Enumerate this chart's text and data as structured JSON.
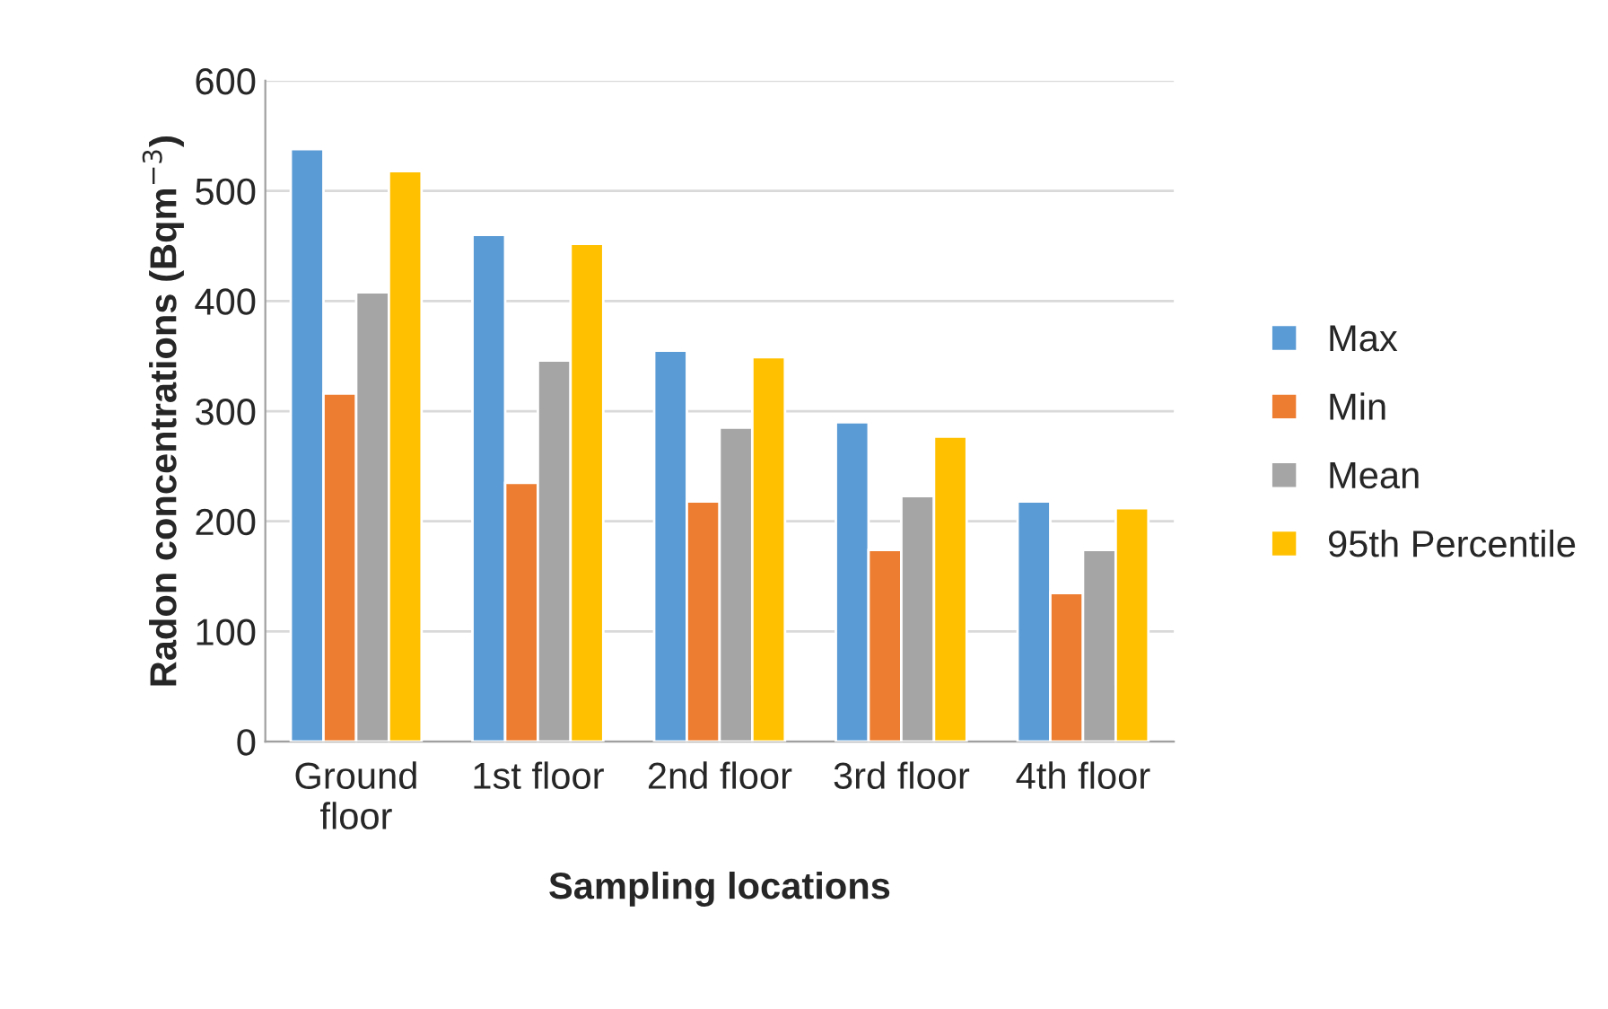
{
  "chart_data": {
    "type": "bar",
    "xlabel": "Sampling locations",
    "ylabel": "Radon concentrations (Bqm$^{−3}$)",
    "categories": [
      "Ground floor",
      "1st floor",
      "2nd floor",
      "3rd floor",
      "4th floor"
    ],
    "series": [
      {
        "name": "Max",
        "color": "#5b9bd5",
        "values": [
          538,
          460,
          355,
          290,
          218
        ]
      },
      {
        "name": "Min",
        "color": "#ed7d31",
        "values": [
          316,
          235,
          218,
          174,
          135
        ]
      },
      {
        "name": "Mean",
        "color": "#a5a5a5",
        "values": [
          408,
          346,
          285,
          223,
          174
        ]
      },
      {
        "name": "95th Percentile",
        "color": "#ffc000",
        "values": [
          518,
          452,
          349,
          277,
          212
        ]
      }
    ],
    "ylim": [
      0,
      600
    ],
    "yticks": [
      0,
      100,
      200,
      300,
      400,
      500,
      600
    ],
    "grid": "y",
    "legend": "right"
  }
}
